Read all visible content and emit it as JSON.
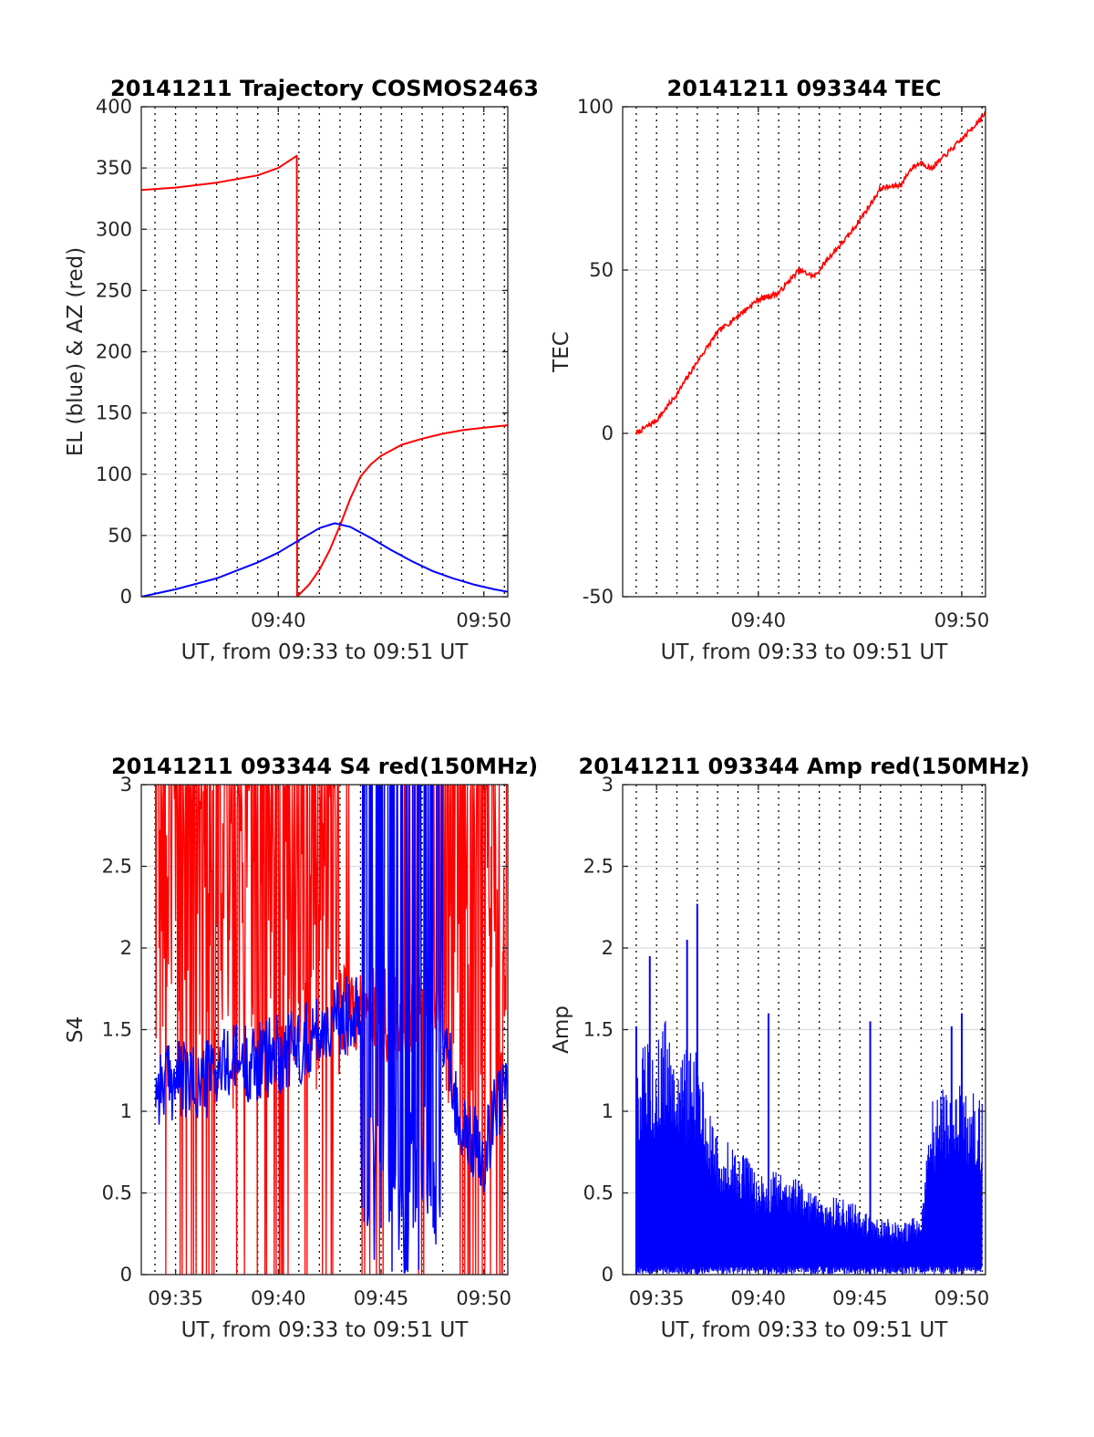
{
  "colors": {
    "red": "#ff0000",
    "blue": "#0000ff",
    "axis": "#262626",
    "grid": "#dcdcdc"
  },
  "chart_data": [
    {
      "type": "line",
      "title": "20141211 Trajectory COSMOS2463",
      "xlabel": "UT, from 09:33 to 09:51 UT",
      "ylabel": "EL (blue) & AZ (red)",
      "xlim": [
        "09:33:20",
        "09:51:10"
      ],
      "ylim": [
        0,
        400
      ],
      "yticks": [
        "0",
        "50",
        "100",
        "150",
        "200",
        "250",
        "300",
        "350",
        "400"
      ],
      "xticks": [
        "09:40",
        "09:50"
      ],
      "grid": "dotted vertical every 1 min, light horizontal at y ticks",
      "legend": "none",
      "series": [
        {
          "color": "red",
          "x": [
            "09:33:20",
            "09:35:00",
            "09:37:00",
            "09:39:00",
            "09:40:00",
            "09:40:54",
            "09:40:55",
            "09:41:30",
            "09:42:00",
            "09:42:30",
            "09:43:00",
            "09:43:30",
            "09:44:00",
            "09:44:30",
            "09:45:00",
            "09:46:00",
            "09:47:00",
            "09:48:00",
            "09:49:00",
            "09:50:00",
            "09:51:10"
          ],
          "values": [
            332,
            334,
            338,
            344,
            350,
            360,
            0,
            10,
            22,
            38,
            58,
            80,
            98,
            108,
            115,
            124,
            129,
            133,
            136,
            138,
            140
          ]
        },
        {
          "color": "blue",
          "x": [
            "09:33:20",
            "09:35:00",
            "09:37:00",
            "09:39:00",
            "09:40:00",
            "09:41:00",
            "09:42:00",
            "09:42:45",
            "09:43:30",
            "09:44:30",
            "09:45:30",
            "09:46:30",
            "09:47:30",
            "09:48:30",
            "09:49:30",
            "09:50:30",
            "09:51:10"
          ],
          "values": [
            0,
            6,
            15,
            28,
            36,
            46,
            56,
            60,
            57,
            48,
            38,
            29,
            21,
            15,
            10,
            6,
            4
          ]
        }
      ]
    },
    {
      "type": "line",
      "title": "20141211 093344 TEC",
      "xlabel": "UT, from 09:33 to 09:51 UT",
      "ylabel": "TEC",
      "xlim": [
        "09:33:20",
        "09:51:10"
      ],
      "ylim": [
        -50,
        100
      ],
      "yticks": [
        "-50",
        "0",
        "50",
        "100"
      ],
      "xticks": [
        "09:40",
        "09:50"
      ],
      "grid": "dotted vertical every 1 min, light horizontal at y ticks",
      "legend": "none",
      "series": [
        {
          "color": "red",
          "x": [
            "09:34:00",
            "09:35:00",
            "09:36:00",
            "09:37:00",
            "09:38:00",
            "09:39:00",
            "09:40:00",
            "09:41:00",
            "09:42:00",
            "09:42:45",
            "09:43:30",
            "09:44:30",
            "09:45:30",
            "09:46:00",
            "09:47:00",
            "09:47:30",
            "09:48:00",
            "09:48:30",
            "09:49:00",
            "09:50:00",
            "09:51:10"
          ],
          "values": [
            0,
            4,
            12,
            22,
            31,
            36,
            41,
            43,
            50,
            48,
            54,
            61,
            70,
            75,
            76,
            81,
            83,
            81,
            84,
            90,
            98
          ]
        }
      ]
    },
    {
      "type": "line",
      "title": "20141211 093344 S4 red(150MHz)",
      "xlabel": "UT, from 09:33 to 09:51 UT",
      "ylabel": "S4",
      "xlim": [
        "09:33:20",
        "09:51:10"
      ],
      "ylim": [
        0,
        3
      ],
      "yticks": [
        "0",
        "0.5",
        "1",
        "1.5",
        "2",
        "2.5",
        "3"
      ],
      "xticks": [
        "09:35",
        "09:40",
        "09:45",
        "09:50"
      ],
      "grid": "dotted vertical every 1 min, light horizontal at y ticks",
      "legend": "none",
      "series": [
        {
          "color": "red",
          "style": "dense noisy trace, frequently saturating 0 to 3 between 09:34 and 09:43, sparse 09:43-09:48, dense again 09:48-09:51"
        },
        {
          "color": "blue",
          "x": [
            "09:34:00",
            "09:35:00",
            "09:36:00",
            "09:37:00",
            "09:38:00",
            "09:39:00",
            "09:40:00",
            "09:41:00",
            "09:42:00",
            "09:43:00",
            "09:44:00",
            "09:45:00",
            "09:46:00",
            "09:47:00",
            "09:48:00",
            "09:49:00",
            "09:50:00",
            "09:51:00"
          ],
          "values": [
            1.15,
            1.2,
            1.15,
            1.25,
            1.3,
            1.3,
            1.35,
            1.4,
            1.5,
            1.55,
            1.7,
            1.5,
            1.5,
            1.5,
            1.5,
            0.85,
            0.75,
            1.2
          ],
          "style": "noisy, saturating full range 0-3 between 09:44 and 09:48"
        }
      ]
    },
    {
      "type": "line",
      "title": "20141211 093344 Amp red(150MHz)",
      "xlabel": "UT, from 09:33 to 09:51 UT",
      "ylabel": "Amp",
      "xlim": [
        "09:33:20",
        "09:51:10"
      ],
      "ylim": [
        0,
        3
      ],
      "yticks": [
        "0",
        "0.5",
        "1",
        "1.5",
        "2",
        "2.5",
        "3"
      ],
      "xticks": [
        "09:35",
        "09:40",
        "09:45",
        "09:50"
      ],
      "grid": "dotted vertical every 1 min, light horizontal at y ticks",
      "legend": "none",
      "series": [
        {
          "color": "blue",
          "style": "dense spiky envelope from 0",
          "x": [
            "09:34:00",
            "09:35:00",
            "09:35:30",
            "09:36:00",
            "09:37:00",
            "09:37:30",
            "09:38:00",
            "09:39:00",
            "09:40:00",
            "09:41:00",
            "09:42:00",
            "09:43:00",
            "09:44:00",
            "09:45:00",
            "09:46:00",
            "09:47:00",
            "09:47:30",
            "09:48:00",
            "09:48:30",
            "09:49:00",
            "09:50:00",
            "09:51:00"
          ],
          "values": [
            1.3,
            1.4,
            1.5,
            1.35,
            1.3,
            1.0,
            0.8,
            0.75,
            0.6,
            0.6,
            0.55,
            0.45,
            0.45,
            0.4,
            0.35,
            0.3,
            0.35,
            0.3,
            1.0,
            1.1,
            1.15,
            1.0
          ],
          "spikes": [
            {
              "x": "09:34:00",
              "y": 1.52
            },
            {
              "x": "09:34:40",
              "y": 1.95
            },
            {
              "x": "09:36:30",
              "y": 2.05
            },
            {
              "x": "09:37:00",
              "y": 2.27
            },
            {
              "x": "09:40:30",
              "y": 1.6
            },
            {
              "x": "09:45:30",
              "y": 1.55
            },
            {
              "x": "09:50:00",
              "y": 1.6
            },
            {
              "x": "09:49:30",
              "y": 1.52
            }
          ]
        }
      ]
    }
  ]
}
